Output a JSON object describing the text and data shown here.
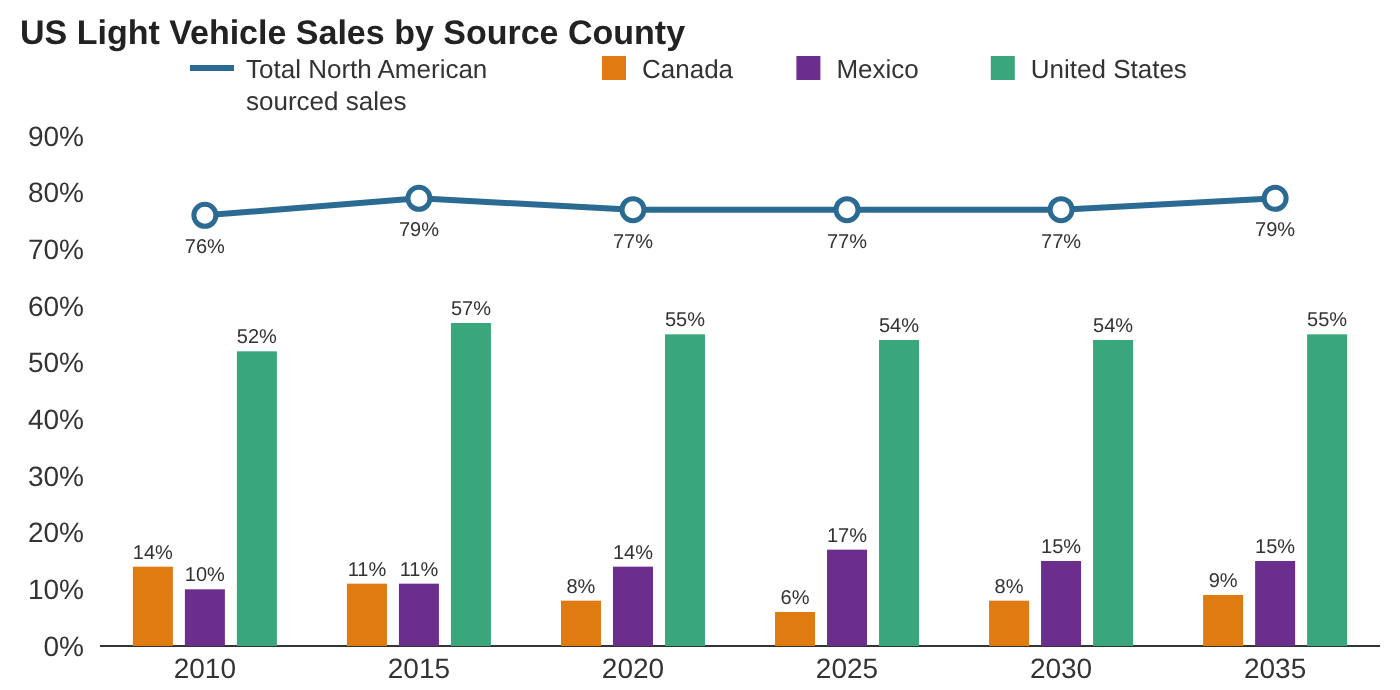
{
  "chart_data": {
    "type": "bar",
    "title": "US Light Vehicle Sales by Source County",
    "categories": [
      "2010",
      "2015",
      "2020",
      "2025",
      "2030",
      "2035"
    ],
    "series": [
      {
        "name": "Total North American sourced sales",
        "type": "line",
        "color": "#2a6a93",
        "values": [
          76,
          79,
          77,
          77,
          77,
          79
        ],
        "value_labels": [
          "76%",
          "79%",
          "77%",
          "77%",
          "77%",
          "79%"
        ],
        "marker": "circle",
        "line_style": "solid"
      },
      {
        "name": "Canada",
        "color": "#e07b12",
        "values": [
          14,
          11,
          8,
          6,
          8,
          9
        ],
        "value_labels": [
          "14%",
          "11%",
          "8%",
          "6%",
          "8%",
          "9%"
        ]
      },
      {
        "name": "Mexico",
        "color": "#6c2e8c",
        "values": [
          10,
          11,
          14,
          17,
          15,
          15
        ],
        "value_labels": [
          "10%",
          "11%",
          "14%",
          "17%",
          "15%",
          "15%"
        ]
      },
      {
        "name": "United States",
        "color": "#3aa67b",
        "values": [
          52,
          57,
          55,
          54,
          54,
          55
        ],
        "value_labels": [
          "52%",
          "57%",
          "55%",
          "54%",
          "54%",
          "55%"
        ]
      }
    ],
    "ylim": [
      0,
      90
    ],
    "yticks": [
      {
        "value": 0,
        "label": "0%"
      },
      {
        "value": 10,
        "label": "10%"
      },
      {
        "value": 20,
        "label": "20%"
      },
      {
        "value": 30,
        "label": "30%"
      },
      {
        "value": 40,
        "label": "40%"
      },
      {
        "value": 50,
        "label": "50%"
      },
      {
        "value": 60,
        "label": "60%"
      },
      {
        "value": 70,
        "label": "70%"
      },
      {
        "value": 80,
        "label": "80%"
      },
      {
        "value": 90,
        "label": "90%"
      }
    ],
    "grid": false,
    "legend": "top"
  }
}
